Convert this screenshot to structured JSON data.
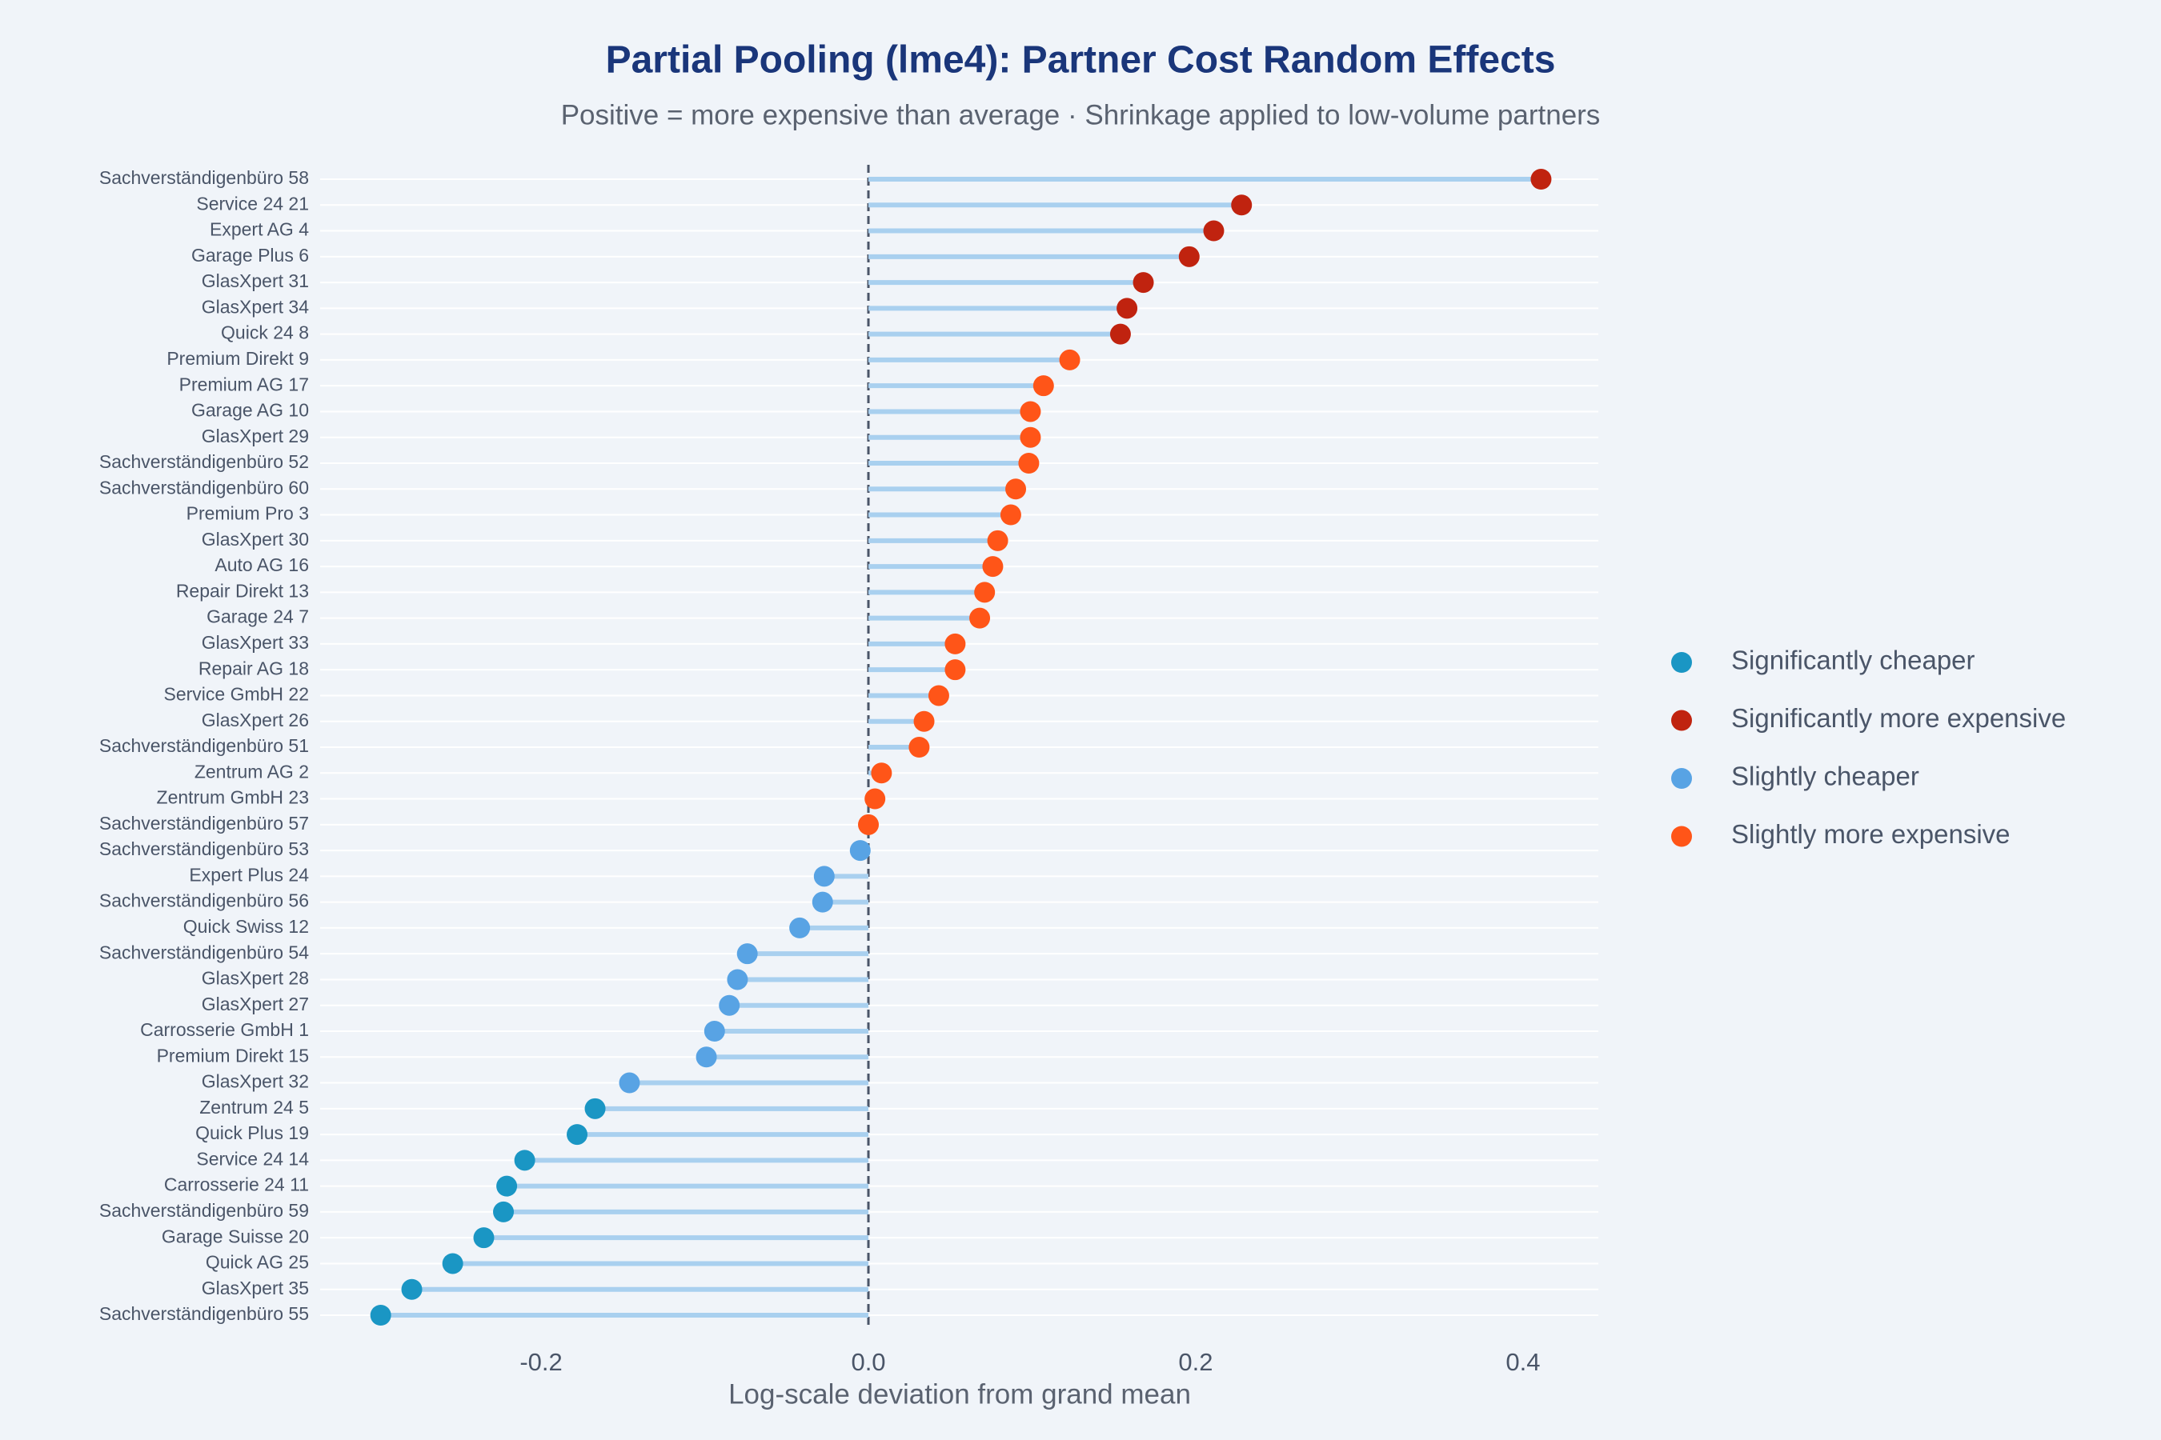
{
  "chart_data": {
    "type": "lollipop",
    "title": "Partial Pooling (lme4): Partner Cost Random Effects",
    "subtitle": "Positive = more expensive than average · Shrinkage applied to low-volume partners",
    "x_label": "Log-scale deviation from grand mean",
    "categories": [
      "Sachverständigenbüro 58",
      "Service 24 21",
      "Expert AG 4",
      "Garage Plus 6",
      "GlasXpert 31",
      "GlasXpert 34",
      "Quick 24 8",
      "Premium Direkt 9",
      "Premium AG 17",
      "Garage AG 10",
      "GlasXpert 29",
      "Sachverständigenbüro 52",
      "Sachverständigenbüro 60",
      "Premium Pro 3",
      "GlasXpert 30",
      "Auto AG 16",
      "Repair Direkt 13",
      "Garage 24 7",
      "GlasXpert 33",
      "Repair AG 18",
      "Service GmbH 22",
      "GlasXpert 26",
      "Sachverständigenbüro 51",
      "Zentrum AG 2",
      "Zentrum GmbH 23",
      "Sachverständigenbüro 57",
      "Sachverständigenbüro 53",
      "Expert Plus 24",
      "Sachverständigenbüro 56",
      "Quick Swiss 12",
      "Sachverständigenbüro 54",
      "GlasXpert 28",
      "GlasXpert 27",
      "Carrosserie GmbH 1",
      "Premium Direkt 15",
      "GlasXpert 32",
      "Zentrum 24 5",
      "Quick Plus 19",
      "Service 24 14",
      "Carrosserie 24 11",
      "Sachverständigenbüro 59",
      "Garage Suisse 20",
      "Quick AG 25",
      "GlasXpert 35",
      "Sachverständigenbüro 55"
    ],
    "series": [
      {
        "name": "Significantly cheaper",
        "color": "#1a96c4",
        "values": [
          null,
          null,
          null,
          null,
          null,
          null,
          null,
          null,
          null,
          null,
          null,
          null,
          null,
          null,
          null,
          null,
          null,
          null,
          null,
          null,
          null,
          null,
          null,
          null,
          null,
          null,
          null,
          null,
          null,
          null,
          null,
          null,
          null,
          null,
          null,
          null,
          -0.167,
          -0.178,
          -0.21,
          -0.221,
          -0.223,
          -0.235,
          -0.254,
          -0.279,
          -0.298
        ]
      },
      {
        "name": "Significantly more expensive",
        "color": "#c0230f",
        "values": [
          0.411,
          0.228,
          0.211,
          0.196,
          0.168,
          0.158,
          0.154,
          null,
          null,
          null,
          null,
          null,
          null,
          null,
          null,
          null,
          null,
          null,
          null,
          null,
          null,
          null,
          null,
          null,
          null,
          null,
          null,
          null,
          null,
          null,
          null,
          null,
          null,
          null,
          null,
          null,
          null,
          null,
          null,
          null,
          null,
          null,
          null,
          null,
          null
        ]
      },
      {
        "name": "Slightly cheaper",
        "color": "#58a3e4",
        "values": [
          null,
          null,
          null,
          null,
          null,
          null,
          null,
          null,
          null,
          null,
          null,
          null,
          null,
          null,
          null,
          null,
          null,
          null,
          null,
          null,
          null,
          null,
          null,
          null,
          null,
          null,
          -0.005,
          -0.027,
          -0.028,
          -0.042,
          -0.074,
          -0.08,
          -0.085,
          -0.094,
          -0.099,
          -0.146,
          null,
          null,
          null,
          null,
          null,
          null,
          null,
          null,
          null
        ]
      },
      {
        "name": "Slightly more expensive",
        "color": "#ff5518",
        "values": [
          null,
          null,
          null,
          null,
          null,
          null,
          null,
          0.123,
          0.107,
          0.099,
          0.099,
          0.098,
          0.09,
          0.087,
          0.079,
          0.076,
          0.071,
          0.068,
          0.053,
          0.053,
          0.043,
          0.034,
          0.031,
          0.008,
          0.004,
          0.0,
          null,
          null,
          null,
          null,
          null,
          null,
          null,
          null,
          null,
          null,
          null,
          null,
          null,
          null,
          null,
          null,
          null,
          null,
          null
        ]
      }
    ],
    "stem_color": "#a9d0ef",
    "xlim": [
      -0.335,
      0.446
    ],
    "xticks": [
      -0.2,
      {
        "value": 0,
        "label": "0.0"
      },
      0.2,
      0.4
    ],
    "grid": true
  }
}
